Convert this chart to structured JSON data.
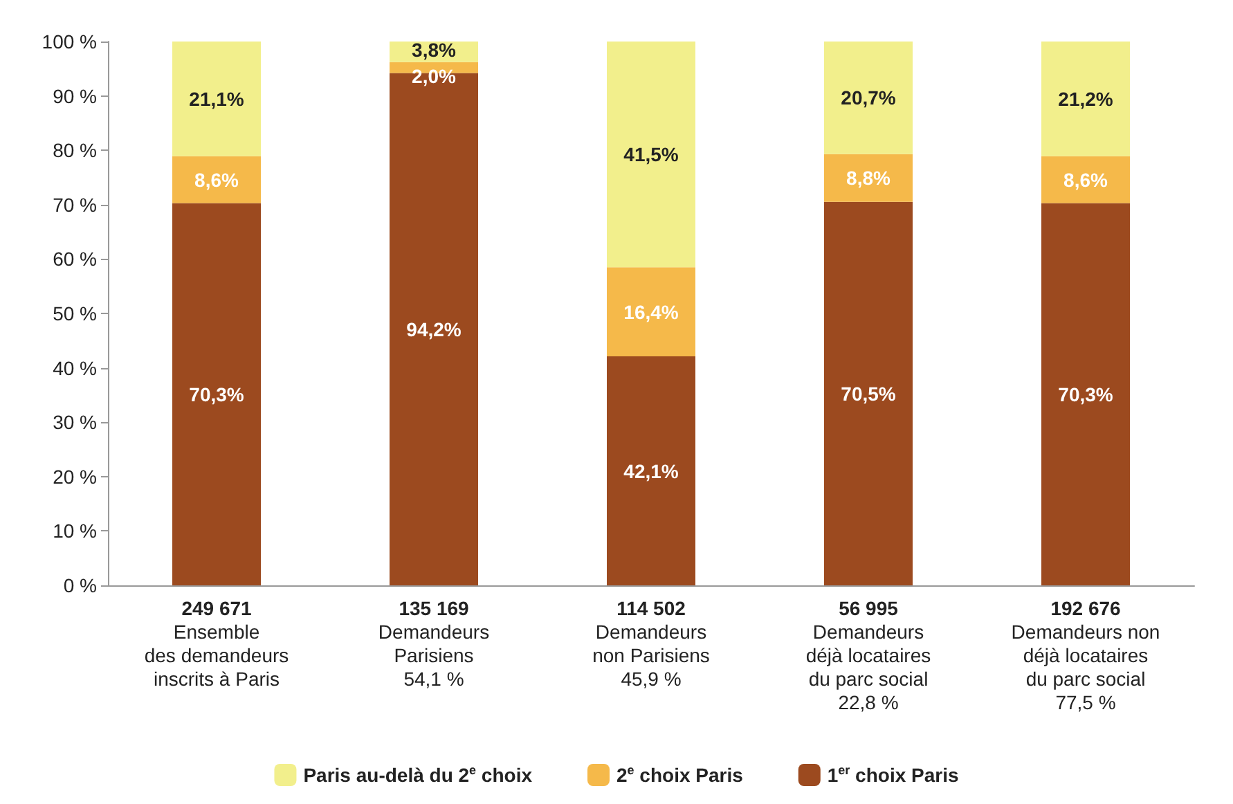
{
  "chart_data": {
    "type": "bar",
    "stacked": true,
    "grid": false,
    "legend": "bottom",
    "categories": [
      "249 671\nEnsemble\ndes demandeurs\ninscrits à Paris",
      "135 169\nDemandeurs\nParisiens\n54,1 %",
      "114 502\nDemandeurs\nnon Parisiens\n45,9 %",
      "56 995\nDemandeurs\ndéjà locataires\ndu parc social\n22,8 %",
      "192 676\nDemandeurs non\ndéjà locataires\ndu parc social\n77,5 %"
    ],
    "series": [
      {
        "name": "1$^{er}$ choix Paris",
        "color": "#9c4a1f",
        "values": [
          70.3,
          94.2,
          42.1,
          70.5,
          70.3
        ],
        "value_labels": [
          "70,3%",
          "94,2%",
          "42,1%",
          "70,5%",
          "70,3%"
        ]
      },
      {
        "name": "2$^{e}$ choix Paris",
        "color": "#f5b94a",
        "values": [
          8.6,
          2.0,
          16.4,
          8.8,
          8.6
        ],
        "value_labels": [
          "8,6%",
          "2,0%",
          "16,4%",
          "8,8%",
          "8,6%"
        ]
      },
      {
        "name": "Paris au-delà du 2$^{e}$ choix",
        "color": "#f2ef8c",
        "values": [
          21.1,
          3.8,
          41.5,
          20.7,
          21.2
        ],
        "value_labels": [
          "21,1%",
          "3,8%",
          "41,5%",
          "20,7%",
          "21,2%"
        ]
      }
    ],
    "ylim": [
      0,
      100
    ],
    "yticks": [
      {
        "value": 0,
        "label": "0 %"
      },
      {
        "value": 10,
        "label": "10 %"
      },
      {
        "value": 20,
        "label": "20 %"
      },
      {
        "value": 30,
        "label": "30 %"
      },
      {
        "value": 40,
        "label": "40 %"
      },
      {
        "value": 50,
        "label": "50 %"
      },
      {
        "value": 60,
        "label": "60 %"
      },
      {
        "value": 70,
        "label": "70 %"
      },
      {
        "value": 80,
        "label": "80 %"
      },
      {
        "value": 90,
        "label": "90 %"
      },
      {
        "value": 100,
        "label": "100 %"
      }
    ]
  }
}
